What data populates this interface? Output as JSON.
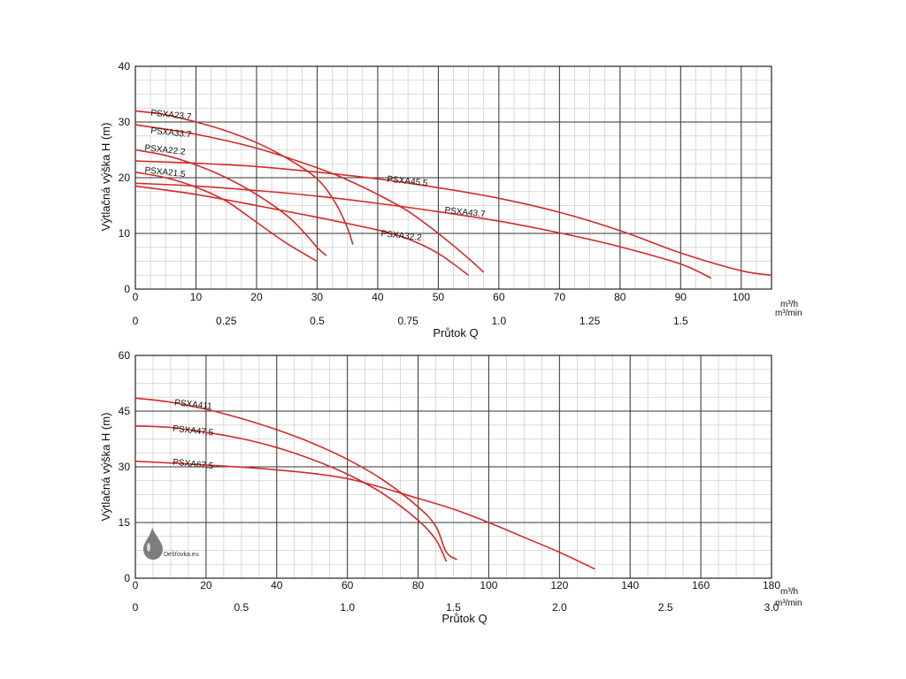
{
  "watermark": {
    "text": "Dešťovka.eu"
  },
  "chart_data": [
    {
      "type": "line",
      "title": "",
      "ylabel": "Výtlačná výška H (m)",
      "xlabel": "Průtok Q",
      "x_unit": "m³/h",
      "x2_unit": "m³/min",
      "ylim": [
        0,
        40
      ],
      "xlim": [
        0,
        105
      ],
      "yticks": [
        0,
        10,
        20,
        30,
        40
      ],
      "xticks": [
        0,
        10,
        20,
        30,
        40,
        50,
        60,
        70,
        80,
        90,
        100
      ],
      "x2ticks": [
        {
          "value": 0,
          "label": "0"
        },
        {
          "value": 0.25,
          "label": "0.25"
        },
        {
          "value": 0.5,
          "label": "0.5"
        },
        {
          "value": 0.75,
          "label": "0.75"
        },
        {
          "value": 1.0,
          "label": "1.0"
        },
        {
          "value": 1.25,
          "label": "1.25"
        },
        {
          "value": 1.5,
          "label": "1.5"
        }
      ],
      "grid": true,
      "series": [
        {
          "name": "PSXA23.7",
          "label_at": [
            2.5,
            31.2
          ],
          "points": [
            [
              0,
              32
            ],
            [
              5,
              31.3
            ],
            [
              10,
              30
            ],
            [
              15,
              28.4
            ],
            [
              20,
              26.3
            ],
            [
              25,
              23.5
            ],
            [
              30,
              19.8
            ],
            [
              33,
              15.5
            ],
            [
              35,
              11
            ],
            [
              35.9,
              8
            ]
          ]
        },
        {
          "name": "PSXA33.7",
          "label_at": [
            2.5,
            28.0
          ],
          "points": [
            [
              0,
              29.5
            ],
            [
              10,
              27.8
            ],
            [
              20,
              25.3
            ],
            [
              30,
              21.8
            ],
            [
              35,
              19.6
            ],
            [
              40,
              17
            ],
            [
              45,
              14
            ],
            [
              50,
              10
            ],
            [
              55,
              5.5
            ],
            [
              57.5,
              3
            ]
          ]
        },
        {
          "name": "PSXA22.2",
          "label_at": [
            1.5,
            24.9
          ],
          "points": [
            [
              0,
              25
            ],
            [
              5,
              24
            ],
            [
              10,
              22.3
            ],
            [
              15,
              20
            ],
            [
              20,
              17
            ],
            [
              25,
              13.2
            ],
            [
              28,
              10
            ],
            [
              30,
              7.5
            ],
            [
              31.5,
              6
            ]
          ]
        },
        {
          "name": "PSXA21.5",
          "label_at": [
            1.5,
            20.9
          ],
          "points": [
            [
              0,
              21
            ],
            [
              5,
              20
            ],
            [
              10,
              18.3
            ],
            [
              15,
              15.8
            ],
            [
              20,
              12
            ],
            [
              25,
              8.2
            ],
            [
              30,
              5
            ]
          ]
        },
        {
          "name": "PSXA45.5",
          "label_at": [
            41.5,
            19.3
          ],
          "points": [
            [
              0,
              23
            ],
            [
              10,
              22.6
            ],
            [
              20,
              22
            ],
            [
              30,
              21
            ],
            [
              40,
              19.8
            ],
            [
              50,
              18.2
            ],
            [
              60,
              16.3
            ],
            [
              70,
              13.8
            ],
            [
              80,
              10.5
            ],
            [
              90,
              6.5
            ],
            [
              100,
              3.3
            ],
            [
              105,
              2.5
            ]
          ]
        },
        {
          "name": "PSXA43.7",
          "label_at": [
            51,
            13.7
          ],
          "points": [
            [
              0,
              19
            ],
            [
              10,
              18.5
            ],
            [
              20,
              17.7
            ],
            [
              30,
              16.7
            ],
            [
              40,
              15.4
            ],
            [
              50,
              13.9
            ],
            [
              60,
              12.2
            ],
            [
              70,
              10.1
            ],
            [
              80,
              7.6
            ],
            [
              90,
              4.5
            ],
            [
              95,
              2
            ]
          ]
        },
        {
          "name": "PSXA32.2",
          "label_at": [
            40.5,
            9.5
          ],
          "points": [
            [
              0,
              18.5
            ],
            [
              10,
              17
            ],
            [
              20,
              15
            ],
            [
              30,
              12.9
            ],
            [
              40,
              10.6
            ],
            [
              45,
              9
            ],
            [
              50,
              6.4
            ],
            [
              55,
              2.5
            ]
          ]
        }
      ]
    },
    {
      "type": "line",
      "title": "",
      "ylabel": "Výtlačná výška H (m)",
      "xlabel": "Průtok Q",
      "x_unit": "m³/h",
      "x2_unit": "m³/min",
      "ylim": [
        0,
        60
      ],
      "xlim": [
        0,
        180
      ],
      "yticks": [
        0,
        15,
        30,
        45,
        60
      ],
      "xticks": [
        0,
        20,
        40,
        60,
        80,
        100,
        120,
        140,
        160,
        180
      ],
      "x2ticks": [
        {
          "value": 0,
          "label": "0"
        },
        {
          "value": 0.5,
          "label": "0.5"
        },
        {
          "value": 1.0,
          "label": "1.0"
        },
        {
          "value": 1.5,
          "label": "1.5"
        },
        {
          "value": 2.0,
          "label": "2.0"
        },
        {
          "value": 2.5,
          "label": "2.5"
        },
        {
          "value": 3.0,
          "label": "3.0"
        }
      ],
      "grid": true,
      "series": [
        {
          "name": "PSXA411",
          "label_at": [
            11,
            46.6
          ],
          "points": [
            [
              0,
              48.5
            ],
            [
              10,
              47.4
            ],
            [
              20,
              45.5
            ],
            [
              30,
              43
            ],
            [
              40,
              40
            ],
            [
              50,
              36.4
            ],
            [
              60,
              32
            ],
            [
              70,
              26.5
            ],
            [
              80,
              19.2
            ],
            [
              85,
              14
            ],
            [
              88,
              7
            ],
            [
              91,
              5
            ]
          ]
        },
        {
          "name": "PSXA47.5",
          "label_at": [
            10.5,
            39.6
          ],
          "points": [
            [
              0,
              41
            ],
            [
              10,
              40.6
            ],
            [
              20,
              39.3
            ],
            [
              30,
              37.6
            ],
            [
              40,
              35.2
            ],
            [
              50,
              32
            ],
            [
              60,
              28
            ],
            [
              70,
              22.8
            ],
            [
              80,
              15.6
            ],
            [
              85,
              10.4
            ],
            [
              88,
              4.5
            ]
          ]
        },
        {
          "name": "PSXA67.5",
          "label_at": [
            10.5,
            30.6
          ],
          "points": [
            [
              0,
              31.5
            ],
            [
              20,
              30.5
            ],
            [
              40,
              29.2
            ],
            [
              60,
              26.8
            ],
            [
              80,
              21.5
            ],
            [
              90,
              18.6
            ],
            [
              100,
              15
            ],
            [
              110,
              11
            ],
            [
              120,
              7
            ],
            [
              130,
              2.5
            ]
          ]
        }
      ]
    }
  ]
}
